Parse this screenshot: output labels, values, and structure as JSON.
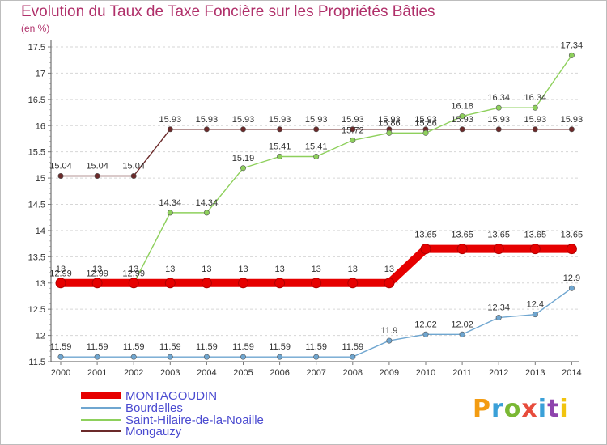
{
  "title": "Evolution du Taux de Taxe Foncière sur les Propriétés Bâties",
  "unit": "(en %)",
  "brand": {
    "text": "Proxiti",
    "colors": [
      "#f39c12",
      "#3aa0d8",
      "#7ab834",
      "#e74c3c",
      "#3aa0d8",
      "#8e44ad",
      "#f1c40f"
    ]
  },
  "chart_data": {
    "type": "line",
    "title": "Evolution du Taux de Taxe Foncière sur les Propriétés Bâties",
    "ylabel": "(en %)",
    "xlabel": "",
    "x": [
      "2000",
      "2001",
      "2002",
      "2003",
      "2004",
      "2005",
      "2006",
      "2007",
      "2008",
      "2009",
      "2010",
      "2011",
      "2012",
      "2013",
      "2014"
    ],
    "ylim": [
      11.5,
      17.5
    ],
    "yticks": [
      "11.5",
      "12",
      "12.5",
      "13",
      "13.5",
      "14",
      "14.5",
      "15",
      "15.5",
      "16",
      "16.5",
      "17",
      "17.5"
    ],
    "grid": "horizontal dashed",
    "series": [
      {
        "name": "MONTAGOUDIN",
        "color": "#e60000",
        "values": [
          13,
          13,
          13,
          13,
          13,
          13,
          13,
          13,
          13,
          13,
          13.65,
          13.65,
          13.65,
          13.65,
          13.65
        ],
        "labels": [
          "13",
          "13",
          "13",
          "13",
          "13",
          "13",
          "13",
          "13",
          "13",
          "13",
          "13.65",
          "13.65",
          "13.65",
          "13.65",
          "13.65"
        ]
      },
      {
        "name": "Bourdelles",
        "color": "#6fa6d0",
        "values": [
          11.59,
          11.59,
          11.59,
          11.59,
          11.59,
          11.59,
          11.59,
          11.59,
          11.59,
          11.9,
          12.02,
          12.02,
          12.34,
          12.4,
          12.9
        ],
        "labels": [
          "11.59",
          "11.59",
          "11.59",
          "11.59",
          "11.59",
          "11.59",
          "11.59",
          "11.59",
          "11.59",
          "11.9",
          "12.02",
          "12.02",
          "12.34",
          "12.4",
          "12.9"
        ]
      },
      {
        "name": "Saint-Hilaire-de-la-Noaille",
        "color": "#8ed05c",
        "values": [
          12.99,
          12.99,
          12.99,
          14.34,
          14.34,
          15.19,
          15.41,
          15.41,
          15.72,
          15.86,
          15.86,
          16.18,
          16.34,
          16.34,
          17.34
        ],
        "labels": [
          "12.99",
          "12.99",
          "12.99",
          "14.34",
          "14.34",
          "15.19",
          "15.41",
          "15.41",
          "15.72",
          "15.86",
          "15.86",
          "16.18",
          "16.34",
          "16.34",
          "17.34"
        ]
      },
      {
        "name": "Mongauzy",
        "color": "#6b2a2a",
        "values": [
          15.04,
          15.04,
          15.04,
          15.93,
          15.93,
          15.93,
          15.93,
          15.93,
          15.93,
          15.93,
          15.93,
          15.93,
          15.93,
          15.93,
          15.93
        ],
        "labels": [
          "15.04",
          "15.04",
          "15.04",
          "15.93",
          "15.93",
          "15.93",
          "15.93",
          "15.93",
          "15.93",
          "15.93",
          "15.93",
          "15.93",
          "15.93",
          "15.93",
          "15.93"
        ]
      }
    ]
  }
}
